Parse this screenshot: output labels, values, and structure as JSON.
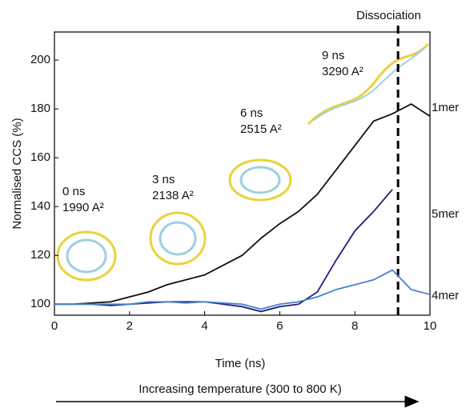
{
  "chart_data": {
    "type": "line",
    "x_label": "Time (ns)",
    "y_label": "Normalised CCS (%)",
    "bottom_label": "Increasing temperature (300 to 800 K)",
    "dissociation_label": "Dissociation",
    "dissociation_x": 9.15,
    "annotations": [
      "0 ns",
      "1990 A²",
      "3 ns",
      "2138 A²",
      "6 ns",
      "2515 A²",
      "9 ns",
      "3290 A²"
    ],
    "x": [
      0,
      0.5,
      1,
      1.5,
      2,
      2.5,
      3,
      3.5,
      4,
      4.5,
      5,
      5.5,
      6,
      6.5,
      7,
      7.5,
      8,
      8.5,
      9,
      9.5,
      10
    ],
    "series": [
      {
        "name": "1mer",
        "color": "#111111",
        "values": [
          100,
          100,
          100.5,
          101,
          103,
          105,
          108,
          110,
          112,
          116,
          120,
          127,
          133,
          138,
          145,
          155,
          165,
          175,
          178,
          182,
          177
        ]
      },
      {
        "name": "5mer",
        "color": "#1f1f80",
        "values": [
          100,
          100,
          100,
          99.5,
          100,
          100.5,
          101,
          101,
          101,
          100,
          99,
          97,
          99,
          100,
          105,
          118,
          130,
          138,
          147,
          null,
          null
        ]
      },
      {
        "name": "4mer",
        "color": "#4a80cc",
        "values": [
          100,
          100,
          100,
          100,
          100,
          101,
          101,
          100.5,
          101,
          100.5,
          100,
          98,
          100,
          101,
          103,
          106,
          108,
          110,
          114,
          106,
          104
        ]
      }
    ],
    "xlim": [
      0,
      10
    ],
    "xticks": [
      0,
      2,
      4,
      6,
      8,
      10
    ],
    "ylim": [
      95.5,
      211.5
    ],
    "yticks": [
      100,
      120,
      140,
      160,
      180,
      200
    ]
  }
}
